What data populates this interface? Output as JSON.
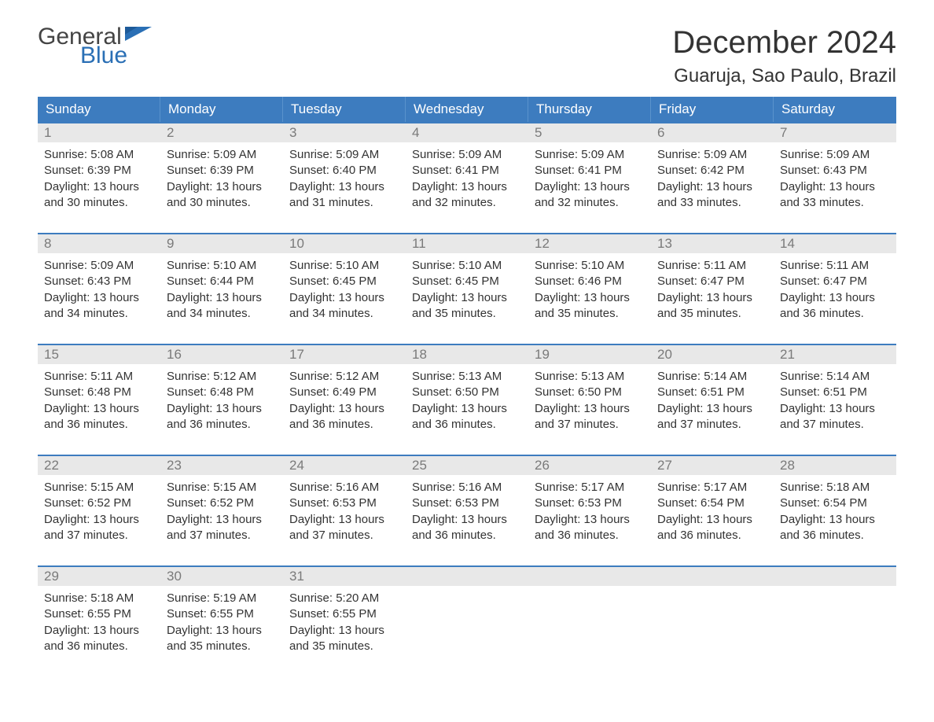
{
  "logo": {
    "word1": "General",
    "word2": "Blue"
  },
  "title": "December 2024",
  "location": "Guaruja, Sao Paulo, Brazil",
  "brand_blue": "#2a6fb5",
  "header_bg": "#3d7cbf",
  "daynum_bg": "#e8e8e8",
  "text_color": "#333333",
  "labels": {
    "sunrise": "Sunrise:",
    "sunset": "Sunset:",
    "daylight": "Daylight:"
  },
  "day_names": [
    "Sunday",
    "Monday",
    "Tuesday",
    "Wednesday",
    "Thursday",
    "Friday",
    "Saturday"
  ],
  "weeks": [
    [
      {
        "n": "1",
        "sr": "5:08 AM",
        "ss": "6:39 PM",
        "dl": "13 hours and 30 minutes."
      },
      {
        "n": "2",
        "sr": "5:09 AM",
        "ss": "6:39 PM",
        "dl": "13 hours and 30 minutes."
      },
      {
        "n": "3",
        "sr": "5:09 AM",
        "ss": "6:40 PM",
        "dl": "13 hours and 31 minutes."
      },
      {
        "n": "4",
        "sr": "5:09 AM",
        "ss": "6:41 PM",
        "dl": "13 hours and 32 minutes."
      },
      {
        "n": "5",
        "sr": "5:09 AM",
        "ss": "6:41 PM",
        "dl": "13 hours and 32 minutes."
      },
      {
        "n": "6",
        "sr": "5:09 AM",
        "ss": "6:42 PM",
        "dl": "13 hours and 33 minutes."
      },
      {
        "n": "7",
        "sr": "5:09 AM",
        "ss": "6:43 PM",
        "dl": "13 hours and 33 minutes."
      }
    ],
    [
      {
        "n": "8",
        "sr": "5:09 AM",
        "ss": "6:43 PM",
        "dl": "13 hours and 34 minutes."
      },
      {
        "n": "9",
        "sr": "5:10 AM",
        "ss": "6:44 PM",
        "dl": "13 hours and 34 minutes."
      },
      {
        "n": "10",
        "sr": "5:10 AM",
        "ss": "6:45 PM",
        "dl": "13 hours and 34 minutes."
      },
      {
        "n": "11",
        "sr": "5:10 AM",
        "ss": "6:45 PM",
        "dl": "13 hours and 35 minutes."
      },
      {
        "n": "12",
        "sr": "5:10 AM",
        "ss": "6:46 PM",
        "dl": "13 hours and 35 minutes."
      },
      {
        "n": "13",
        "sr": "5:11 AM",
        "ss": "6:47 PM",
        "dl": "13 hours and 35 minutes."
      },
      {
        "n": "14",
        "sr": "5:11 AM",
        "ss": "6:47 PM",
        "dl": "13 hours and 36 minutes."
      }
    ],
    [
      {
        "n": "15",
        "sr": "5:11 AM",
        "ss": "6:48 PM",
        "dl": "13 hours and 36 minutes."
      },
      {
        "n": "16",
        "sr": "5:12 AM",
        "ss": "6:48 PM",
        "dl": "13 hours and 36 minutes."
      },
      {
        "n": "17",
        "sr": "5:12 AM",
        "ss": "6:49 PM",
        "dl": "13 hours and 36 minutes."
      },
      {
        "n": "18",
        "sr": "5:13 AM",
        "ss": "6:50 PM",
        "dl": "13 hours and 36 minutes."
      },
      {
        "n": "19",
        "sr": "5:13 AM",
        "ss": "6:50 PM",
        "dl": "13 hours and 37 minutes."
      },
      {
        "n": "20",
        "sr": "5:14 AM",
        "ss": "6:51 PM",
        "dl": "13 hours and 37 minutes."
      },
      {
        "n": "21",
        "sr": "5:14 AM",
        "ss": "6:51 PM",
        "dl": "13 hours and 37 minutes."
      }
    ],
    [
      {
        "n": "22",
        "sr": "5:15 AM",
        "ss": "6:52 PM",
        "dl": "13 hours and 37 minutes."
      },
      {
        "n": "23",
        "sr": "5:15 AM",
        "ss": "6:52 PM",
        "dl": "13 hours and 37 minutes."
      },
      {
        "n": "24",
        "sr": "5:16 AM",
        "ss": "6:53 PM",
        "dl": "13 hours and 37 minutes."
      },
      {
        "n": "25",
        "sr": "5:16 AM",
        "ss": "6:53 PM",
        "dl": "13 hours and 36 minutes."
      },
      {
        "n": "26",
        "sr": "5:17 AM",
        "ss": "6:53 PM",
        "dl": "13 hours and 36 minutes."
      },
      {
        "n": "27",
        "sr": "5:17 AM",
        "ss": "6:54 PM",
        "dl": "13 hours and 36 minutes."
      },
      {
        "n": "28",
        "sr": "5:18 AM",
        "ss": "6:54 PM",
        "dl": "13 hours and 36 minutes."
      }
    ],
    [
      {
        "n": "29",
        "sr": "5:18 AM",
        "ss": "6:55 PM",
        "dl": "13 hours and 36 minutes."
      },
      {
        "n": "30",
        "sr": "5:19 AM",
        "ss": "6:55 PM",
        "dl": "13 hours and 35 minutes."
      },
      {
        "n": "31",
        "sr": "5:20 AM",
        "ss": "6:55 PM",
        "dl": "13 hours and 35 minutes."
      },
      {
        "empty": true
      },
      {
        "empty": true
      },
      {
        "empty": true
      },
      {
        "empty": true
      }
    ]
  ]
}
